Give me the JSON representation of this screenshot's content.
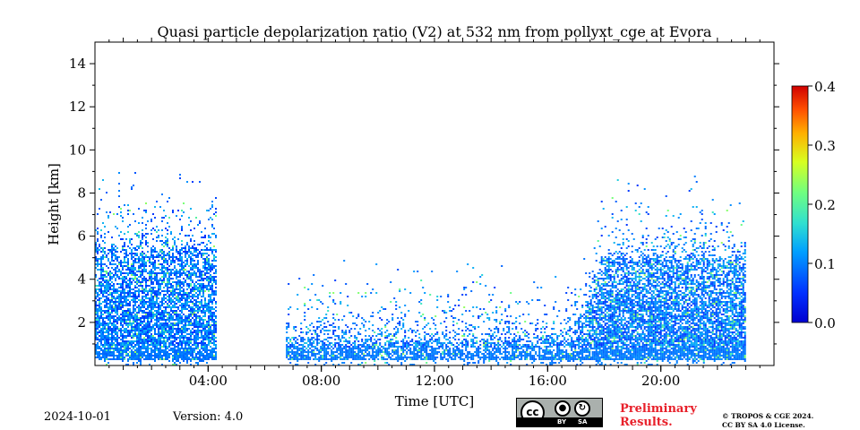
{
  "chart_data": {
    "type": "heatmap",
    "title": "Quasi particle depolarization ratio (V2) at 532 nm from pollyxt_cge at Evora",
    "xlabel": "Time [UTC]",
    "ylabel": "Height [km]",
    "xlim_hours": [
      0,
      24
    ],
    "ylim_km": [
      0,
      15
    ],
    "x_ticks": [
      {
        "hour": 4,
        "label": "04:00"
      },
      {
        "hour": 8,
        "label": "08:00"
      },
      {
        "hour": 12,
        "label": "12:00"
      },
      {
        "hour": 16,
        "label": "16:00"
      },
      {
        "hour": 20,
        "label": "20:00"
      }
    ],
    "y_ticks": [
      {
        "km": 2,
        "label": "2"
      },
      {
        "km": 4,
        "label": "4"
      },
      {
        "km": 6,
        "label": "6"
      },
      {
        "km": 8,
        "label": "8"
      },
      {
        "km": 10,
        "label": "10"
      },
      {
        "km": 12,
        "label": "12"
      },
      {
        "km": 14,
        "label": "14"
      }
    ],
    "colorbar": {
      "min": 0.0,
      "max": 0.4,
      "ticks": [
        "0.0",
        "0.1",
        "0.2",
        "0.3",
        "0.4"
      ],
      "colormap": "jet"
    },
    "data_gaps_hours": [
      [
        4.25,
        6.75
      ],
      [
        23.0,
        24.0
      ]
    ],
    "segments": [
      {
        "start_hour": 0.0,
        "end_hour": 4.25,
        "dense_top_km": 5.5,
        "sparse_top_km": 9.0,
        "typical_value": 0.1
      },
      {
        "start_hour": 6.75,
        "end_hour": 17.5,
        "dense_top_km": 1.2,
        "sparse_top_km": 5.0,
        "typical_value": 0.1
      },
      {
        "start_hour": 17.5,
        "end_hour": 23.0,
        "dense_top_km": 5.0,
        "sparse_top_km": 9.0,
        "typical_value": 0.12
      }
    ]
  },
  "footer": {
    "date": "2024-10-01",
    "version": "Version: 4.0",
    "preliminary_line1": "Preliminary",
    "preliminary_line2": "Results.",
    "copyright_line1": "© TROPOS & CGE 2024.",
    "copyright_line2": "CC BY SA 4.0 License.",
    "license_by": "BY",
    "license_sa": "SA",
    "license_cc": "cc"
  },
  "colors": {
    "accent_red": "#e8202a",
    "background": "#ffffff"
  }
}
